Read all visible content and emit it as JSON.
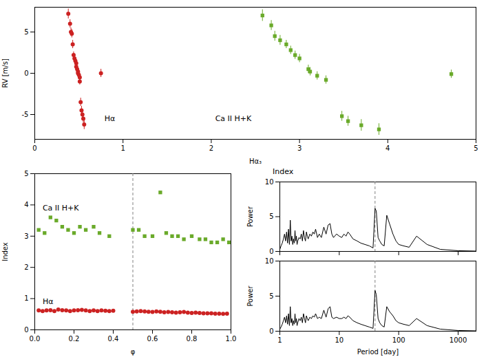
{
  "chart_data": [
    {
      "type": "scatter",
      "xlabel": "Hα₃",
      "ylabel": "RV [m/s]",
      "xlim": [
        0,
        5
      ],
      "ylim": [
        -8,
        8
      ],
      "xticks": [
        0,
        1,
        2,
        3,
        4,
        5
      ],
      "yticks": [
        -5,
        0,
        5
      ],
      "series": [
        {
          "color": "#cc2222",
          "marker": "circle",
          "x": [
            0.38,
            0.4,
            0.41,
            0.42,
            0.43,
            0.44,
            0.45,
            0.46,
            0.47,
            0.47,
            0.48,
            0.49,
            0.49,
            0.5,
            0.51,
            0.51,
            0.52,
            0.53,
            0.54,
            0.55,
            0.56,
            0.75
          ],
          "values": [
            7.2,
            6.0,
            5.0,
            4.8,
            3.5,
            2.2,
            1.8,
            1.5,
            1.2,
            0.8,
            0.5,
            0.2,
            0.0,
            -0.2,
            -0.5,
            -1.0,
            -3.5,
            -4.5,
            -5.0,
            -5.5,
            -6.2,
            0.0
          ],
          "yerr": [
            0.6,
            0.5,
            0.5,
            0.5,
            0.5,
            0.4,
            0.4,
            0.4,
            0.4,
            0.4,
            0.4,
            0.4,
            0.4,
            0.4,
            0.4,
            0.4,
            0.5,
            0.5,
            0.5,
            0.5,
            0.6,
            0.5
          ]
        },
        {
          "color": "#6aaa2a",
          "marker": "square",
          "x": [
            2.58,
            2.68,
            2.72,
            2.78,
            2.85,
            2.9,
            2.95,
            3.0,
            3.1,
            3.12,
            3.2,
            3.3,
            3.48,
            3.55,
            3.7,
            3.9,
            4.72
          ],
          "values": [
            7.0,
            5.8,
            4.5,
            4.0,
            3.5,
            2.8,
            2.2,
            1.8,
            0.5,
            0.2,
            -0.3,
            -0.8,
            -5.2,
            -5.8,
            -6.3,
            -6.8,
            -0.1
          ],
          "yerr": [
            0.7,
            0.6,
            0.6,
            0.6,
            0.5,
            0.5,
            0.5,
            0.5,
            0.5,
            0.5,
            0.5,
            0.5,
            0.6,
            0.6,
            0.7,
            0.7,
            0.5
          ]
        }
      ],
      "annotations": [
        {
          "text": "Hα",
          "x": 0.85,
          "y": -5.5
        },
        {
          "text": "Ca II H+K",
          "x": 2.25,
          "y": -5.5
        }
      ]
    },
    {
      "type": "scatter",
      "xlabel": "φ",
      "ylabel": "Index",
      "xlim": [
        0,
        1
      ],
      "ylim": [
        0,
        5
      ],
      "xticks": [
        {
          "value": 0,
          "label": "0.0"
        },
        0.2,
        0.4,
        0.6,
        0.8,
        {
          "value": 1,
          "label": "1.0"
        }
      ],
      "yticks": [
        0,
        1,
        2,
        3,
        4,
        5
      ],
      "vline": 0.5,
      "series": [
        {
          "color": "#6aaa2a",
          "marker": "square",
          "x": [
            0.02,
            0.05,
            0.08,
            0.11,
            0.14,
            0.17,
            0.2,
            0.23,
            0.26,
            0.3,
            0.33,
            0.38,
            0.5,
            0.53,
            0.56,
            0.6,
            0.64,
            0.67,
            0.7,
            0.73,
            0.76,
            0.8,
            0.84,
            0.87,
            0.9,
            0.93,
            0.96,
            0.99
          ],
          "values": [
            3.2,
            3.1,
            3.6,
            3.5,
            3.3,
            3.2,
            3.1,
            3.3,
            3.2,
            3.3,
            3.1,
            3.0,
            3.2,
            3.2,
            3.0,
            3.0,
            4.4,
            3.1,
            3.0,
            3.0,
            2.9,
            3.0,
            2.9,
            2.9,
            2.8,
            2.8,
            2.9,
            2.8
          ]
        },
        {
          "color": "#cc2222",
          "marker": "circle",
          "x": [
            0.02,
            0.04,
            0.06,
            0.08,
            0.1,
            0.12,
            0.14,
            0.16,
            0.18,
            0.2,
            0.22,
            0.24,
            0.26,
            0.28,
            0.3,
            0.32,
            0.34,
            0.36,
            0.38,
            0.4,
            0.5,
            0.52,
            0.54,
            0.56,
            0.58,
            0.6,
            0.62,
            0.64,
            0.66,
            0.68,
            0.7,
            0.72,
            0.74,
            0.76,
            0.78,
            0.8,
            0.82,
            0.84,
            0.86,
            0.88,
            0.9,
            0.92,
            0.94,
            0.96,
            0.98
          ],
          "values": [
            0.62,
            0.6,
            0.62,
            0.63,
            0.6,
            0.65,
            0.63,
            0.62,
            0.6,
            0.62,
            0.63,
            0.64,
            0.62,
            0.6,
            0.62,
            0.6,
            0.62,
            0.61,
            0.6,
            0.61,
            0.58,
            0.59,
            0.6,
            0.59,
            0.58,
            0.57,
            0.59,
            0.58,
            0.56,
            0.57,
            0.56,
            0.55,
            0.56,
            0.57,
            0.55,
            0.54,
            0.55,
            0.54,
            0.53,
            0.53,
            0.53,
            0.52,
            0.52,
            0.51,
            0.52
          ]
        }
      ],
      "annotations": [
        {
          "text": "Ca II H+K",
          "x": 0.04,
          "y": 3.9
        },
        {
          "text": "Hα",
          "x": 0.04,
          "y": 0.9
        }
      ]
    },
    {
      "type": "line",
      "log": "x",
      "title": "Index",
      "ylabel": "Power",
      "xlim": [
        1,
        2000
      ],
      "ylim": [
        0,
        10
      ],
      "xticks": [
        1,
        10,
        100,
        1000
      ],
      "yticks": [
        0,
        5,
        10
      ],
      "tick_labels": "y",
      "vline": 40.0,
      "color": "#000000",
      "x": [
        1.0,
        1.05,
        1.1,
        1.15,
        1.2,
        1.25,
        1.3,
        1.35,
        1.4,
        1.45,
        1.5,
        1.55,
        1.6,
        1.65,
        1.7,
        1.75,
        1.8,
        1.85,
        1.9,
        1.95,
        2.0,
        2.1,
        2.2,
        2.3,
        2.4,
        2.5,
        2.6,
        2.7,
        2.8,
        2.9,
        3.0,
        3.2,
        3.4,
        3.6,
        3.8,
        4.0,
        4.3,
        4.6,
        5.0,
        5.5,
        6.0,
        6.5,
        7.0,
        7.5,
        8.0,
        9.0,
        10.0,
        11.0,
        12.0,
        13.0,
        14.0,
        15.0,
        17.0,
        20.0,
        23.0,
        27.0,
        32.0,
        37.0,
        40.0,
        42.0,
        45.0,
        48.0,
        52.0,
        57.0,
        63.0,
        70.0,
        80.0,
        90.0,
        100.0,
        120.0,
        150.0,
        200.0,
        300.0,
        500.0,
        1000.0,
        2000.0
      ],
      "values": [
        0.3,
        0.8,
        1.2,
        1.8,
        2.5,
        1.5,
        2.8,
        1.2,
        3.2,
        1.0,
        4.5,
        1.5,
        2.2,
        1.0,
        1.8,
        1.2,
        3.0,
        1.5,
        2.2,
        1.0,
        1.5,
        2.0,
        1.8,
        2.5,
        1.5,
        3.0,
        2.0,
        1.5,
        2.8,
        2.2,
        1.8,
        2.5,
        2.2,
        2.8,
        2.5,
        3.2,
        2.0,
        2.5,
        2.0,
        3.5,
        2.5,
        3.8,
        4.0,
        2.5,
        2.0,
        2.5,
        2.2,
        2.0,
        2.5,
        2.2,
        2.8,
        2.5,
        1.8,
        1.5,
        1.2,
        1.0,
        0.8,
        0.5,
        6.2,
        5.8,
        2.0,
        1.5,
        1.0,
        0.8,
        5.2,
        4.0,
        2.5,
        1.5,
        1.0,
        0.8,
        0.6,
        2.2,
        1.0,
        0.3,
        0.1,
        0.05
      ]
    },
    {
      "type": "line",
      "log": "x",
      "xlabel": "Period [day]",
      "ylabel": "Power",
      "xlim": [
        1,
        2000
      ],
      "ylim": [
        0,
        10
      ],
      "xticks": [
        1,
        10,
        100,
        1000
      ],
      "yticks": [
        0,
        5,
        10
      ],
      "vline": 40.0,
      "color": "#000000",
      "x": [
        1.0,
        1.05,
        1.1,
        1.15,
        1.2,
        1.25,
        1.3,
        1.35,
        1.4,
        1.45,
        1.5,
        1.55,
        1.6,
        1.65,
        1.7,
        1.75,
        1.8,
        1.85,
        1.9,
        1.95,
        2.0,
        2.1,
        2.2,
        2.3,
        2.4,
        2.5,
        2.6,
        2.7,
        2.8,
        2.9,
        3.0,
        3.2,
        3.4,
        3.6,
        3.8,
        4.0,
        4.3,
        4.6,
        5.0,
        5.5,
        6.0,
        6.5,
        7.0,
        7.5,
        8.0,
        9.0,
        10.0,
        11.0,
        12.0,
        13.0,
        14.0,
        15.0,
        17.0,
        20.0,
        23.0,
        27.0,
        32.0,
        37.0,
        40.0,
        42.0,
        45.0,
        48.0,
        52.0,
        57.0,
        63.0,
        70.0,
        80.0,
        90.0,
        100.0,
        120.0,
        150.0,
        200.0,
        300.0,
        500.0,
        1000.0,
        2000.0
      ],
      "values": [
        0.3,
        0.6,
        1.0,
        1.5,
        2.0,
        1.2,
        2.2,
        1.0,
        2.5,
        0.8,
        3.5,
        1.2,
        1.8,
        0.8,
        1.5,
        1.0,
        2.5,
        1.2,
        1.8,
        0.8,
        1.2,
        1.8,
        1.5,
        2.0,
        1.2,
        2.5,
        1.8,
        1.2,
        2.2,
        1.8,
        1.5,
        2.0,
        1.8,
        2.2,
        2.0,
        2.5,
        1.8,
        2.0,
        1.8,
        3.0,
        2.0,
        3.2,
        3.5,
        2.0,
        1.8,
        2.0,
        1.8,
        1.8,
        2.0,
        1.8,
        2.2,
        2.0,
        1.5,
        1.2,
        1.0,
        0.8,
        0.6,
        0.4,
        5.8,
        5.2,
        1.8,
        1.2,
        0.8,
        0.6,
        3.5,
        2.8,
        2.2,
        1.5,
        1.2,
        1.0,
        0.8,
        1.8,
        0.8,
        0.3,
        0.1,
        0.05
      ]
    }
  ]
}
